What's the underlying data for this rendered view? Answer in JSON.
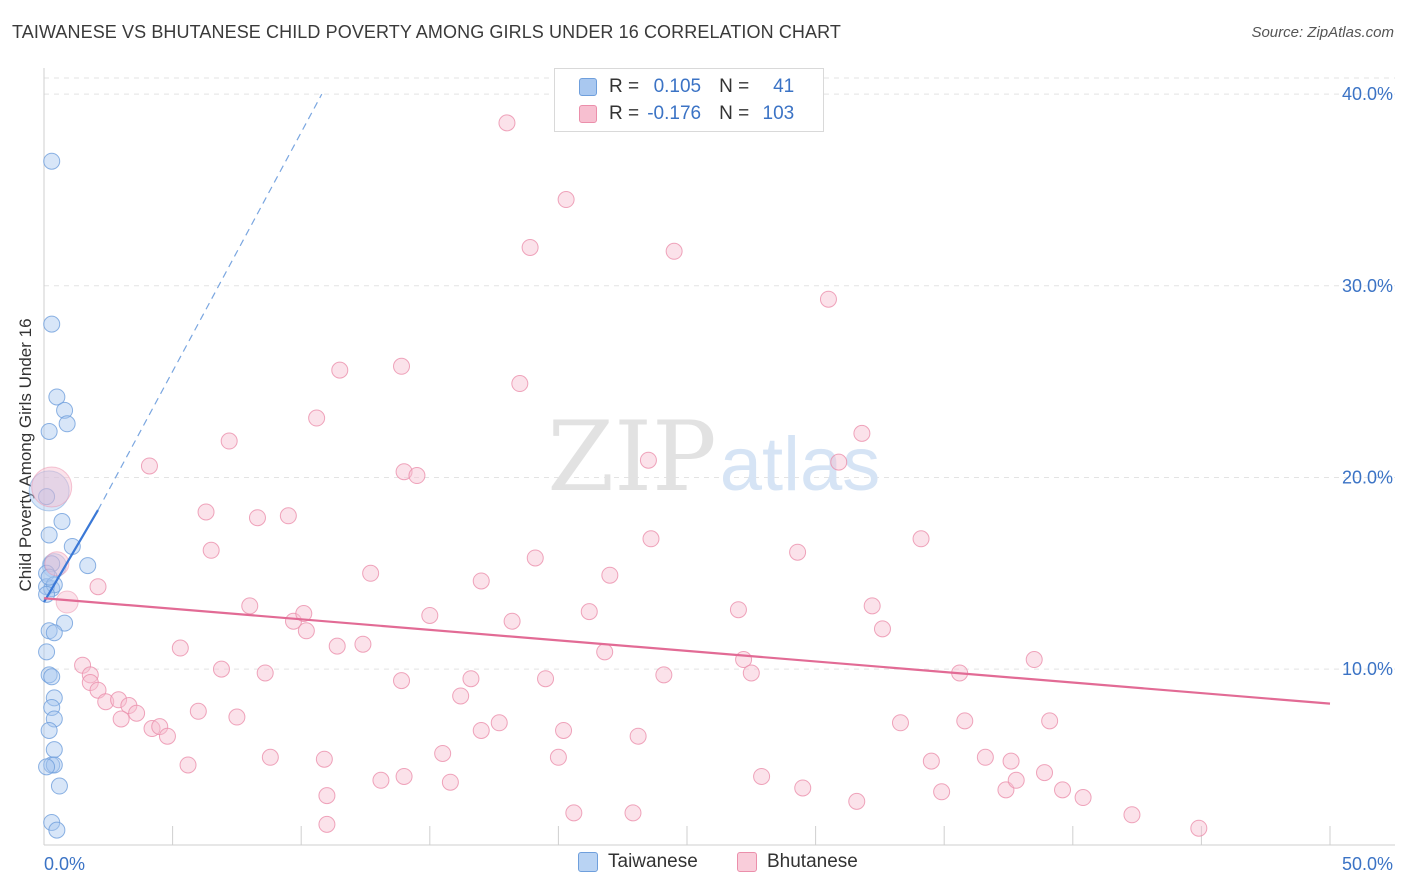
{
  "title": "TAIWANESE VS BHUTANESE CHILD POVERTY AMONG GIRLS UNDER 16 CORRELATION CHART",
  "source": "Source: ZipAtlas.com",
  "watermark": {
    "zip": "ZIP",
    "atlas": "atlas"
  },
  "legend": {
    "rows": [
      {
        "r_label": "R =",
        "r_value": "0.105",
        "n_label": "N =",
        "n_value": "41",
        "color": "#a9c8f0",
        "stroke": "#6f9fdc"
      },
      {
        "r_label": "R =",
        "r_value": "-0.176",
        "n_label": "N =",
        "n_value": "103",
        "color": "#f7bfd0",
        "stroke": "#eb8fab"
      }
    ]
  },
  "bottom_legend": {
    "taiwanese": "Taiwanese",
    "bhutanese": "Bhutanese"
  },
  "chart_data": {
    "type": "scatter",
    "title": "TAIWANESE VS BHUTANESE CHILD POVERTY AMONG GIRLS UNDER 16 CORRELATION CHART",
    "xlabel": "",
    "ylabel": "Child Poverty Among Girls Under 16",
    "xlim": [
      0,
      50
    ],
    "ylim": [
      0,
      40
    ],
    "x_tick_labels": [
      "0.0%",
      "50.0%"
    ],
    "y_ticks": [
      10,
      20,
      30,
      40
    ],
    "y_tick_labels": [
      "10.0%",
      "20.0%",
      "30.0%",
      "40.0%"
    ],
    "grid": true,
    "series": [
      {
        "name": "Taiwanese",
        "color": "#a9c8f0",
        "stroke": "#6f9fdc",
        "points": [
          [
            0.3,
            36.5
          ],
          [
            0.3,
            28.0
          ],
          [
            0.5,
            24.2
          ],
          [
            0.8,
            23.5
          ],
          [
            0.9,
            22.8
          ],
          [
            0.2,
            22.4
          ],
          [
            0.1,
            19.0
          ],
          [
            0.7,
            17.7
          ],
          [
            0.2,
            17.0
          ],
          [
            1.1,
            16.4
          ],
          [
            1.7,
            15.4
          ],
          [
            0.3,
            15.5
          ],
          [
            0.1,
            15.0
          ],
          [
            0.1,
            14.3
          ],
          [
            0.3,
            14.2
          ],
          [
            0.4,
            14.4
          ],
          [
            0.8,
            12.4
          ],
          [
            0.2,
            12.0
          ],
          [
            0.4,
            11.9
          ],
          [
            0.1,
            10.9
          ],
          [
            0.2,
            9.7
          ],
          [
            0.3,
            9.6
          ],
          [
            0.4,
            8.5
          ],
          [
            0.3,
            8.0
          ],
          [
            0.4,
            7.4
          ],
          [
            0.2,
            6.8
          ],
          [
            0.4,
            5.8
          ],
          [
            0.3,
            5.0
          ],
          [
            0.4,
            5.0
          ],
          [
            0.6,
            3.9
          ],
          [
            0.3,
            2.0
          ],
          [
            0.5,
            1.6
          ],
          [
            0.1,
            4.9
          ],
          [
            0.2,
            14.8
          ],
          [
            0.1,
            13.9
          ]
        ],
        "large_points": [
          [
            0.2,
            19.3
          ],
          [
            0.4,
            15.4
          ]
        ]
      },
      {
        "name": "Bhutanese",
        "color": "#f7bfd0",
        "stroke": "#eb8fab",
        "points": [
          [
            18.0,
            38.5
          ],
          [
            20.3,
            34.5
          ],
          [
            18.9,
            32.0
          ],
          [
            24.5,
            31.8
          ],
          [
            30.5,
            29.3
          ],
          [
            11.5,
            25.6
          ],
          [
            13.9,
            25.8
          ],
          [
            18.5,
            24.9
          ],
          [
            10.6,
            23.1
          ],
          [
            7.2,
            21.9
          ],
          [
            31.8,
            22.3
          ],
          [
            4.1,
            20.6
          ],
          [
            14.0,
            20.3
          ],
          [
            14.5,
            20.1
          ],
          [
            23.5,
            20.9
          ],
          [
            30.9,
            20.8
          ],
          [
            6.3,
            18.2
          ],
          [
            8.3,
            17.9
          ],
          [
            9.5,
            18.0
          ],
          [
            23.6,
            16.8
          ],
          [
            34.1,
            16.8
          ],
          [
            6.5,
            16.2
          ],
          [
            19.1,
            15.8
          ],
          [
            29.3,
            16.1
          ],
          [
            12.7,
            15.0
          ],
          [
            22.0,
            14.9
          ],
          [
            17.0,
            14.6
          ],
          [
            8.0,
            13.3
          ],
          [
            9.7,
            12.5
          ],
          [
            10.1,
            12.9
          ],
          [
            15.0,
            12.8
          ],
          [
            18.2,
            12.5
          ],
          [
            21.2,
            13.0
          ],
          [
            27.0,
            13.1
          ],
          [
            32.2,
            13.3
          ],
          [
            32.6,
            12.1
          ],
          [
            10.2,
            12.0
          ],
          [
            11.4,
            11.2
          ],
          [
            12.4,
            11.3
          ],
          [
            2.1,
            14.3
          ],
          [
            1.5,
            10.2
          ],
          [
            1.8,
            9.7
          ],
          [
            5.3,
            11.1
          ],
          [
            6.9,
            10.0
          ],
          [
            8.6,
            9.8
          ],
          [
            13.9,
            9.4
          ],
          [
            16.6,
            9.5
          ],
          [
            19.5,
            9.5
          ],
          [
            21.8,
            10.9
          ],
          [
            24.1,
            9.7
          ],
          [
            27.2,
            10.5
          ],
          [
            27.5,
            9.8
          ],
          [
            35.6,
            9.8
          ],
          [
            38.5,
            10.5
          ],
          [
            1.8,
            9.3
          ],
          [
            2.1,
            8.9
          ],
          [
            2.4,
            8.3
          ],
          [
            2.9,
            8.4
          ],
          [
            3.3,
            8.1
          ],
          [
            3.6,
            7.7
          ],
          [
            3.0,
            7.4
          ],
          [
            6.0,
            7.8
          ],
          [
            7.5,
            7.5
          ],
          [
            4.2,
            6.9
          ],
          [
            4.5,
            7.0
          ],
          [
            4.8,
            6.5
          ],
          [
            16.2,
            8.6
          ],
          [
            17.7,
            7.2
          ],
          [
            17.0,
            6.8
          ],
          [
            20.2,
            6.8
          ],
          [
            23.1,
            6.5
          ],
          [
            33.3,
            7.2
          ],
          [
            35.8,
            7.3
          ],
          [
            39.1,
            7.3
          ],
          [
            5.6,
            5.0
          ],
          [
            8.8,
            5.4
          ],
          [
            10.9,
            5.3
          ],
          [
            15.5,
            5.6
          ],
          [
            20.0,
            5.4
          ],
          [
            34.5,
            5.2
          ],
          [
            36.6,
            5.4
          ],
          [
            37.6,
            5.2
          ],
          [
            38.9,
            4.6
          ],
          [
            14.0,
            4.4
          ],
          [
            13.1,
            4.2
          ],
          [
            15.8,
            4.1
          ],
          [
            27.9,
            4.4
          ],
          [
            29.5,
            3.8
          ],
          [
            37.4,
            3.7
          ],
          [
            37.8,
            4.2
          ],
          [
            39.6,
            3.7
          ],
          [
            34.9,
            3.6
          ],
          [
            11.0,
            3.4
          ],
          [
            31.6,
            3.1
          ],
          [
            40.4,
            3.3
          ],
          [
            20.6,
            2.5
          ],
          [
            22.9,
            2.5
          ],
          [
            11.0,
            1.9
          ],
          [
            42.3,
            2.4
          ],
          [
            44.9,
            1.7
          ]
        ],
        "large_points": [
          [
            0.3,
            19.5
          ],
          [
            0.5,
            15.5
          ],
          [
            0.9,
            13.5
          ]
        ]
      }
    ],
    "trend_lines": [
      {
        "series": "Taiwanese",
        "x": [
          0.0,
          2.1
        ],
        "y": [
          13.5,
          18.3
        ],
        "style": "solid",
        "color": "#3a78d6"
      },
      {
        "series": "Taiwanese",
        "x": [
          2.1,
          10.8
        ],
        "y": [
          18.3,
          40.0
        ],
        "style": "dashed",
        "color": "#7aa6e0"
      },
      {
        "series": "Bhutanese",
        "x": [
          0.0,
          50.0
        ],
        "y": [
          13.7,
          8.2
        ],
        "style": "solid",
        "color": "#e26b95"
      }
    ]
  }
}
